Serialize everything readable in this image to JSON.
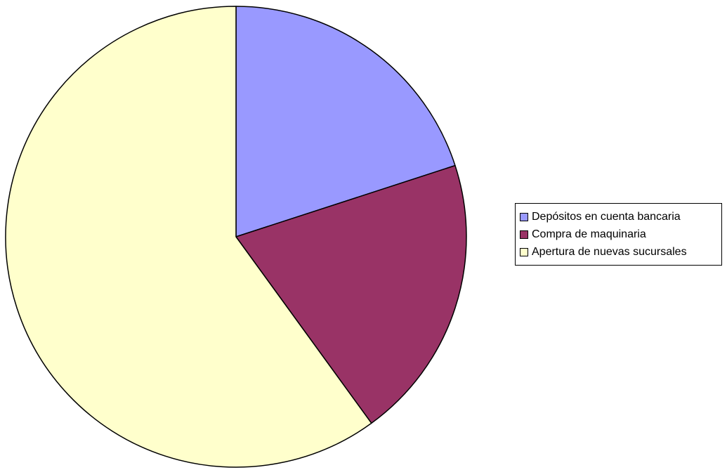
{
  "chart_data": {
    "type": "pie",
    "title": "",
    "categories": [
      "Depósitos en cuenta bancaria",
      "Compra de maquinaria",
      "Apertura de nuevas sucursales"
    ],
    "values": [
      20,
      20,
      60
    ],
    "colors": [
      "#9999ff",
      "#993366",
      "#ffffcc"
    ],
    "start_angle_deg": 0,
    "direction": "clockwise",
    "legend_position": "right"
  }
}
